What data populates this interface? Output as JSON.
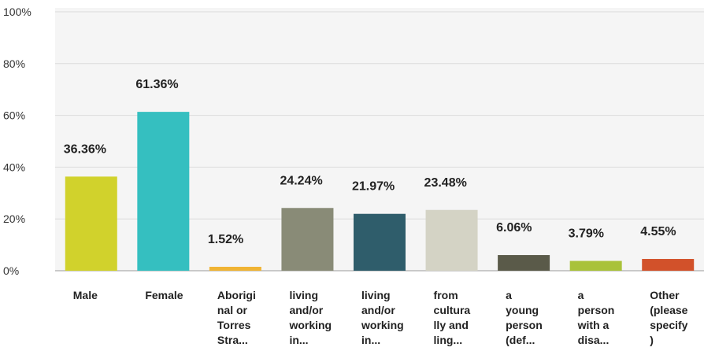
{
  "chart_data": {
    "type": "bar",
    "categories": [
      [
        "Male"
      ],
      [
        "Female"
      ],
      [
        "Aborigi",
        "nal or",
        "Torres",
        "Stra..."
      ],
      [
        "living",
        "and/or",
        "working",
        "in..."
      ],
      [
        "living",
        "and/or",
        "working",
        "in..."
      ],
      [
        "from",
        "cultura",
        "lly and",
        "ling..."
      ],
      [
        "a",
        "young",
        "person",
        "(def..."
      ],
      [
        "a",
        "person",
        "with a",
        "disa..."
      ],
      [
        "Other",
        "(please",
        "specify",
        ")"
      ]
    ],
    "values": [
      36.36,
      61.36,
      1.52,
      24.24,
      21.97,
      23.48,
      6.06,
      3.79,
      4.55
    ],
    "value_labels": [
      "36.36%",
      "61.36%",
      "1.52%",
      "24.24%",
      "21.97%",
      "23.48%",
      "6.06%",
      "3.79%",
      "4.55%"
    ],
    "colors": [
      "#d1d22c",
      "#35bfc0",
      "#f0b434",
      "#898b77",
      "#2f5d6b",
      "#d4d3c5",
      "#5a5a49",
      "#a9c23a",
      "#d2512a"
    ],
    "yticks": [
      0,
      20,
      40,
      60,
      80,
      100
    ],
    "ytick_labels": [
      "0%",
      "20%",
      "40%",
      "60%",
      "80%",
      "100%"
    ],
    "ylim": [
      0,
      100
    ],
    "grid": true,
    "title": "",
    "xlabel": "",
    "ylabel": ""
  }
}
